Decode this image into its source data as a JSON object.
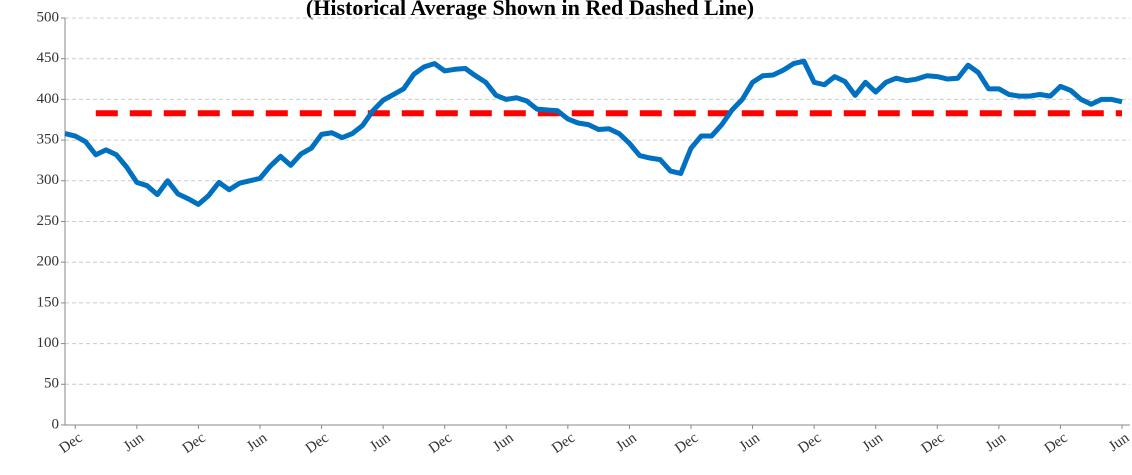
{
  "chart_data": {
    "type": "line",
    "subtitle": "(Historical Average Shown in Red Dashed Line)",
    "categories": [
      null,
      "Dec",
      null,
      null,
      null,
      null,
      null,
      "Jun",
      null,
      null,
      null,
      null,
      null,
      "Dec",
      null,
      null,
      null,
      null,
      null,
      "Jun",
      null,
      null,
      null,
      null,
      null,
      "Dec",
      null,
      null,
      null,
      null,
      null,
      "Jun",
      null,
      null,
      null,
      null,
      null,
      "Dec",
      null,
      null,
      null,
      null,
      null,
      "Jun",
      null,
      null,
      null,
      null,
      null,
      "Dec",
      null,
      null,
      null,
      null,
      null,
      "Jun",
      null,
      null,
      null,
      null,
      null,
      "Dec",
      null,
      null,
      null,
      null,
      null,
      "Jun",
      null,
      null,
      null,
      null,
      null,
      "Dec",
      null,
      null,
      null,
      null,
      null,
      "Jun",
      null,
      null,
      null,
      null,
      null,
      "Dec",
      null,
      null,
      null,
      null,
      null,
      "Jun",
      null,
      null,
      null,
      null,
      null,
      "Dec",
      null,
      null,
      null,
      null,
      null,
      "Jun"
    ],
    "series": [
      {
        "color": "#0070c0",
        "values": [
          358,
          355,
          348,
          332,
          338,
          332,
          317,
          298,
          294,
          283,
          300,
          284,
          278,
          271,
          282,
          298,
          289,
          297,
          300,
          303,
          318,
          330,
          319,
          333,
          340,
          357,
          359,
          353,
          358,
          368,
          386,
          399,
          406,
          413,
          431,
          440,
          444,
          435,
          437,
          438,
          429,
          421,
          405,
          400,
          402,
          398,
          388,
          387,
          386,
          376,
          371,
          369,
          363,
          364,
          358,
          346,
          331,
          328,
          326,
          312,
          309,
          340,
          355,
          355,
          369,
          387,
          400,
          421,
          429,
          430,
          436,
          444,
          447,
          421,
          418,
          428,
          422,
          405,
          421,
          409,
          421,
          426,
          423,
          425,
          429,
          428,
          425,
          426,
          442,
          433,
          413,
          413,
          406,
          404,
          404,
          406,
          404,
          416,
          411,
          400,
          394,
          400,
          400,
          397
        ]
      }
    ],
    "reference_line": {
      "value": 383,
      "color": "#ff0000"
    },
    "ylim": [
      0,
      500
    ],
    "yticks": [
      0,
      50,
      100,
      150,
      200,
      250,
      300,
      350,
      400,
      450,
      500
    ],
    "grid": true
  }
}
